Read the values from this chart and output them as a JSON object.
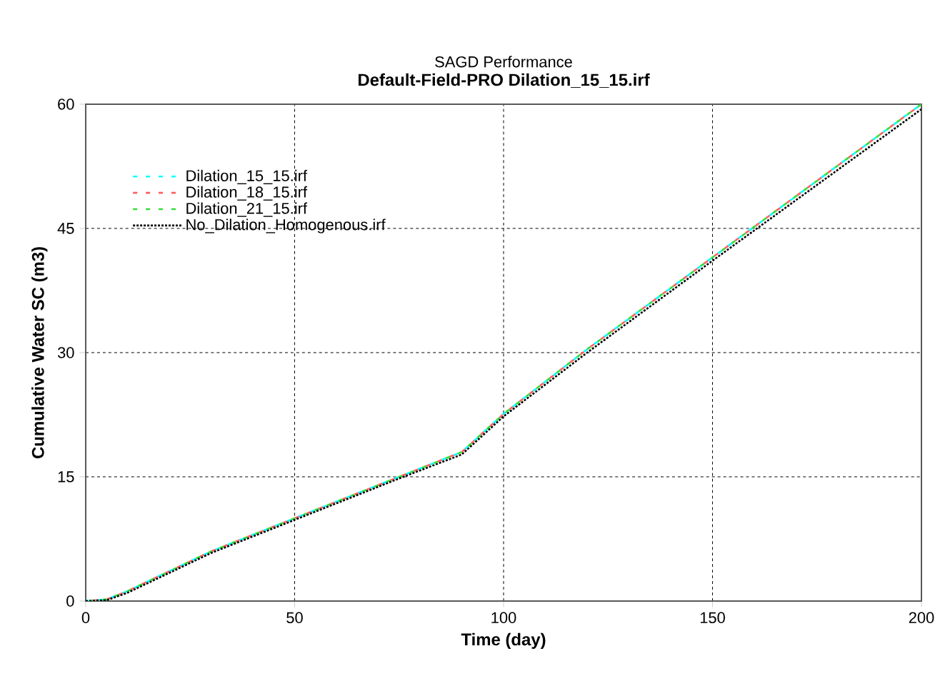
{
  "chart_data": {
    "type": "line",
    "title": "Default-Field-PRO Dilation_15_15.irf",
    "subtitle": "SAGD Performance",
    "xlabel": "Time (day)",
    "ylabel": "Cumulative Water SC (m3)",
    "x": [
      0,
      5,
      10,
      20,
      30,
      50,
      75,
      90,
      100,
      120,
      150,
      200
    ],
    "series": [
      {
        "name": "Dilation_15_15.irf",
        "color": "#00ffff",
        "line_style": "dashed",
        "values": [
          0,
          0.2,
          1.2,
          3.6,
          6,
          10,
          15,
          18,
          22.6,
          30.4,
          41.5,
          60
        ]
      },
      {
        "name": "Dilation_18_15.irf",
        "color": "#ff6060",
        "line_style": "dashed",
        "values": [
          0,
          0.2,
          1.2,
          3.6,
          6,
          10,
          15,
          18,
          22.6,
          30.4,
          41.5,
          60
        ]
      },
      {
        "name": "Dilation_21_15.irf",
        "color": "#33dd33",
        "line_style": "dashed",
        "values": [
          0,
          0.2,
          1.2,
          3.6,
          6,
          10,
          15,
          18,
          22.6,
          30.4,
          41.5,
          60
        ]
      },
      {
        "name": "No_Dilation_Homogenous.irf",
        "color": "#000000",
        "line_style": "dotted",
        "values": [
          0,
          0.1,
          1.0,
          3.4,
          5.8,
          9.8,
          14.8,
          17.7,
          22.3,
          30.0,
          41.1,
          59.4
        ]
      }
    ],
    "xlim": [
      0,
      200
    ],
    "ylim": [
      0,
      60
    ],
    "xticks": [
      0,
      50,
      100,
      150,
      200
    ],
    "yticks": [
      0,
      15,
      30,
      45,
      60
    ],
    "grid": true,
    "legend": "top left"
  }
}
